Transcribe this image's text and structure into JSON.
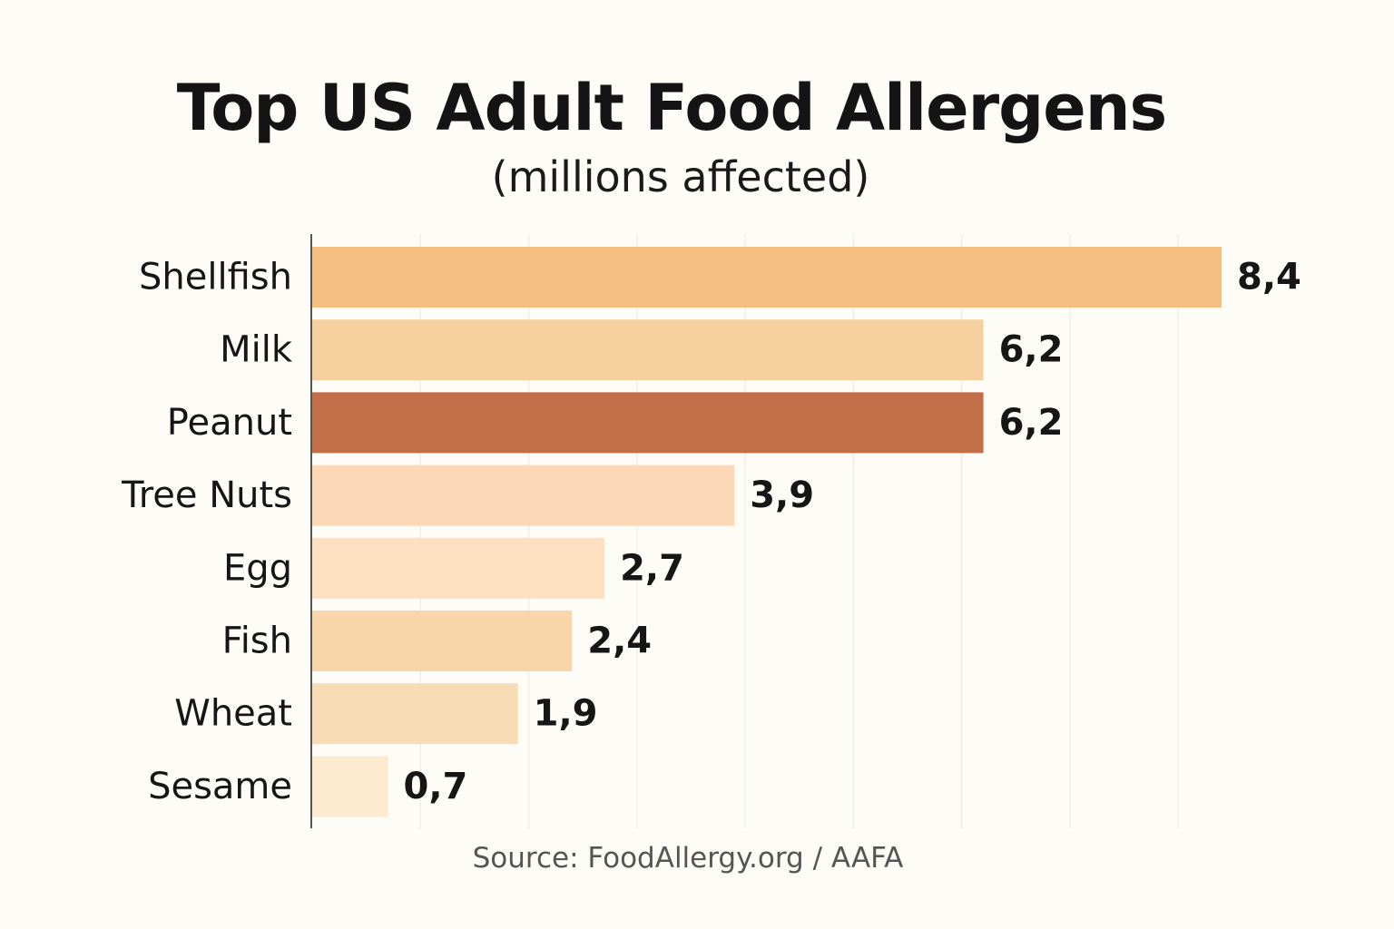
{
  "title": "Top US Adult Food Allergens",
  "subtitle": "(millions affected)",
  "source": "Source: FoodAllergy.org / AAFA",
  "chart_data": {
    "type": "bar",
    "orientation": "horizontal",
    "title": "Top US Adult Food Allergens",
    "subtitle": "(millions affected)",
    "categories": [
      "Shellfish",
      "Milk",
      "Peanut",
      "Tree Nuts",
      "Egg",
      "Fish",
      "Wheat",
      "Sesame"
    ],
    "values": [
      8.4,
      6.2,
      6.2,
      3.9,
      2.7,
      2.4,
      1.9,
      0.7
    ],
    "value_labels": [
      "8,4",
      "6,2",
      "6,2",
      "3,9",
      "2,7",
      "2,4",
      "1,9",
      "0,7"
    ],
    "bar_colors": [
      "#f5bf82",
      "#f6d19f",
      "#c26e48",
      "#fcd8b6",
      "#fde0c1",
      "#f9d6aa",
      "#f7dcb5",
      "#fceacf"
    ],
    "highlight_category": "Peanut",
    "xlabel": "",
    "ylabel": "",
    "xlim": [
      0,
      8.4
    ],
    "grid": true,
    "legend": "none"
  }
}
